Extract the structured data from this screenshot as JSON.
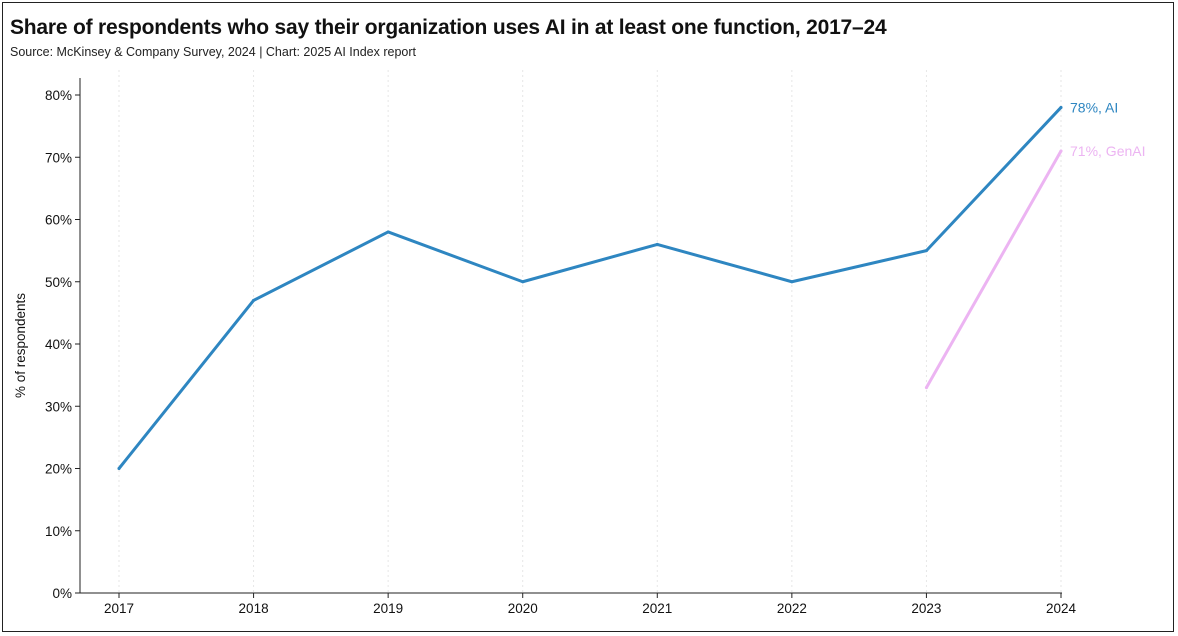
{
  "title": "Share of respondents who say their organization uses AI in at least one function, 2017–24",
  "subtitle": "Source: McKinsey & Company Survey, 2024 | Chart: 2025 AI Index report",
  "chart_data": {
    "type": "line",
    "title": "Share of respondents who say their organization uses AI in at least one function, 2017–24",
    "subtitle": "Source: McKinsey & Company Survey, 2024 | Chart: 2025 AI Index report",
    "xlabel": "",
    "ylabel": "% of respondents",
    "x": [
      "2017",
      "2018",
      "2019",
      "2020",
      "2021",
      "2022",
      "2023",
      "2024"
    ],
    "ylim": [
      0,
      80
    ],
    "yticks": [
      0,
      10,
      20,
      30,
      40,
      50,
      60,
      70,
      80
    ],
    "ytick_labels": [
      "0%",
      "10%",
      "20%",
      "30%",
      "40%",
      "50%",
      "60%",
      "70%",
      "80%"
    ],
    "grid": true,
    "legend": "none",
    "series": [
      {
        "name": "AI",
        "color": "#2e86c1",
        "end_label": "78%, AI",
        "points": [
          {
            "x": "2017",
            "y": 20
          },
          {
            "x": "2018",
            "y": 47
          },
          {
            "x": "2019",
            "y": 58
          },
          {
            "x": "2020",
            "y": 50
          },
          {
            "x": "2021",
            "y": 56
          },
          {
            "x": "2022",
            "y": 50
          },
          {
            "x": "2023",
            "y": 55
          },
          {
            "x": "2024",
            "y": 78
          }
        ]
      },
      {
        "name": "GenAI",
        "color": "#ecb4f2",
        "end_label": "71%, GenAI",
        "points": [
          {
            "x": "2023",
            "y": 33
          },
          {
            "x": "2024",
            "y": 71
          }
        ]
      }
    ]
  }
}
